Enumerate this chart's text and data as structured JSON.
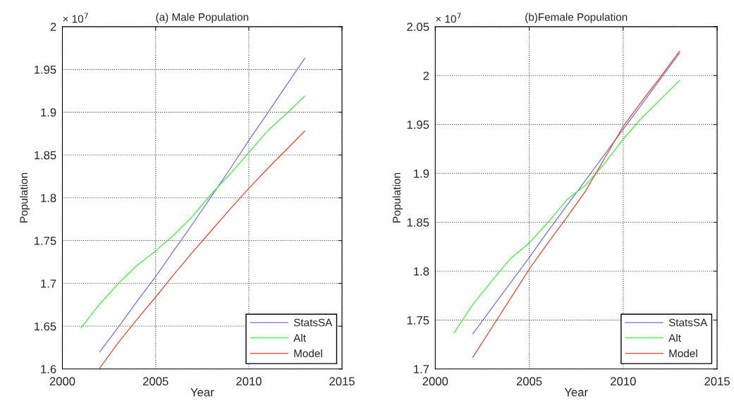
{
  "chart_data": [
    {
      "type": "line",
      "title": "(a) Male Population",
      "xlabel": "Year",
      "ylabel": "Population",
      "annotations": [
        "× 10$^{7}$"
      ],
      "xlim": [
        2000,
        2015
      ],
      "xticks": [
        2000,
        2005,
        2010,
        2015
      ],
      "ylim": [
        1.6,
        2.0
      ],
      "yticks": [
        1.6,
        1.65,
        1.7,
        1.75,
        1.8,
        1.85,
        1.9,
        1.95,
        2
      ],
      "grid": true,
      "legend": "bottom right",
      "series": [
        {
          "name": "StatsSA",
          "color": "#6f6ff5",
          "x": [
            2002,
            2003,
            2004,
            2005,
            2006,
            2007,
            2008,
            2009,
            2010,
            2011,
            2012,
            2013
          ],
          "values": [
            1.62,
            1.649,
            1.679,
            1.708,
            1.739,
            1.77,
            1.802,
            1.834,
            1.867,
            1.899,
            1.931,
            1.963
          ]
        },
        {
          "name": "Alt",
          "color": "#3ff03f",
          "x": [
            2001,
            2002,
            2003,
            2004,
            2005,
            2006,
            2007,
            2008,
            2009,
            2010,
            2011,
            2012,
            2013
          ],
          "values": [
            1.648,
            1.676,
            1.7,
            1.721,
            1.738,
            1.757,
            1.779,
            1.805,
            1.828,
            1.853,
            1.878,
            1.898,
            1.919
          ]
        },
        {
          "name": "Model",
          "color": "#e8472a",
          "x": [
            2002,
            2003,
            2004,
            2005,
            2006,
            2007,
            2008,
            2009,
            2010,
            2011,
            2012,
            2013
          ],
          "values": [
            1.601,
            1.631,
            1.658,
            1.684,
            1.711,
            1.737,
            1.762,
            1.787,
            1.811,
            1.834,
            1.856,
            1.878
          ]
        }
      ]
    },
    {
      "type": "line",
      "title": "(b)Female Population",
      "xlabel": "Year",
      "ylabel": "Population",
      "annotations": [
        "× 10$^{7}$"
      ],
      "xlim": [
        2000,
        2015
      ],
      "xticks": [
        2000,
        2005,
        2010,
        2015
      ],
      "ylim": [
        1.7,
        2.05
      ],
      "yticks": [
        1.7,
        1.75,
        1.8,
        1.85,
        1.9,
        1.95,
        2,
        2.05
      ],
      "grid": true,
      "legend": "bottom right",
      "series": [
        {
          "name": "StatsSA",
          "color": "#6f6ff5",
          "x": [
            2002,
            2003,
            2004,
            2005,
            2006,
            2007,
            2008,
            2009,
            2010,
            2011,
            2012,
            2013
          ],
          "values": [
            1.736,
            1.762,
            1.788,
            1.814,
            1.841,
            1.867,
            1.893,
            1.919,
            1.945,
            1.971,
            1.997,
            2.023
          ]
        },
        {
          "name": "Alt",
          "color": "#3ff03f",
          "x": [
            2001,
            2002,
            2003,
            2004,
            2005,
            2006,
            2007,
            2008,
            2009,
            2010,
            2011,
            2012,
            2013
          ],
          "values": [
            1.737,
            1.766,
            1.79,
            1.813,
            1.829,
            1.85,
            1.873,
            1.888,
            1.91,
            1.935,
            1.957,
            1.976,
            1.995
          ]
        },
        {
          "name": "Model",
          "color": "#e8472a",
          "x": [
            2002,
            2003,
            2004,
            2005,
            2006,
            2007,
            2008,
            2009,
            2010,
            2011,
            2012,
            2013
          ],
          "values": [
            1.712,
            1.742,
            1.772,
            1.802,
            1.829,
            1.855,
            1.882,
            1.915,
            1.948,
            1.974,
            1.999,
            2.025
          ]
        }
      ]
    }
  ]
}
